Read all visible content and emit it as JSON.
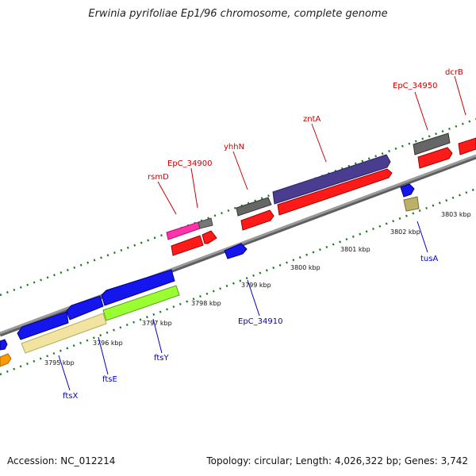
{
  "header": {
    "title": "Erwinia pyrifoliae Ep1/96 chromosome, complete genome"
  },
  "footer": {
    "accession": "Accession: NC_012214",
    "summary": "Topology: circular; Length: 4,026,322 bp; Genes: 3,742"
  },
  "colors": {
    "backbone": "#888888",
    "forward_label": "#cc0000",
    "reverse_label": "#0000cc",
    "tick": "#1a7a1a"
  },
  "axis": {
    "unit": "kbp",
    "tick_labels": [
      "3795 kbp",
      "3796 kbp",
      "3797 kbp",
      "3798 kbp",
      "3799 kbp",
      "3800 kbp",
      "3801 kbp",
      "3802 kbp",
      "3803 kbp"
    ]
  },
  "genes_top": [
    {
      "name": "rsmD",
      "color": "pink"
    },
    {
      "name": "EpC_34900",
      "color": "red"
    },
    {
      "name": "yhhN",
      "color": "red"
    },
    {
      "name": "zntA",
      "color": "purple"
    },
    {
      "name": "EpC_34950",
      "color": "red"
    },
    {
      "name": "dcrB",
      "color": "red"
    }
  ],
  "genes_bottom": [
    {
      "name": "ftsX",
      "color": "blue"
    },
    {
      "name": "ftsE",
      "color": "blue"
    },
    {
      "name": "ftsY",
      "color": "green"
    },
    {
      "name": "EpC_34910",
      "color": "blue"
    },
    {
      "name": "tusA",
      "color": "blue"
    }
  ]
}
